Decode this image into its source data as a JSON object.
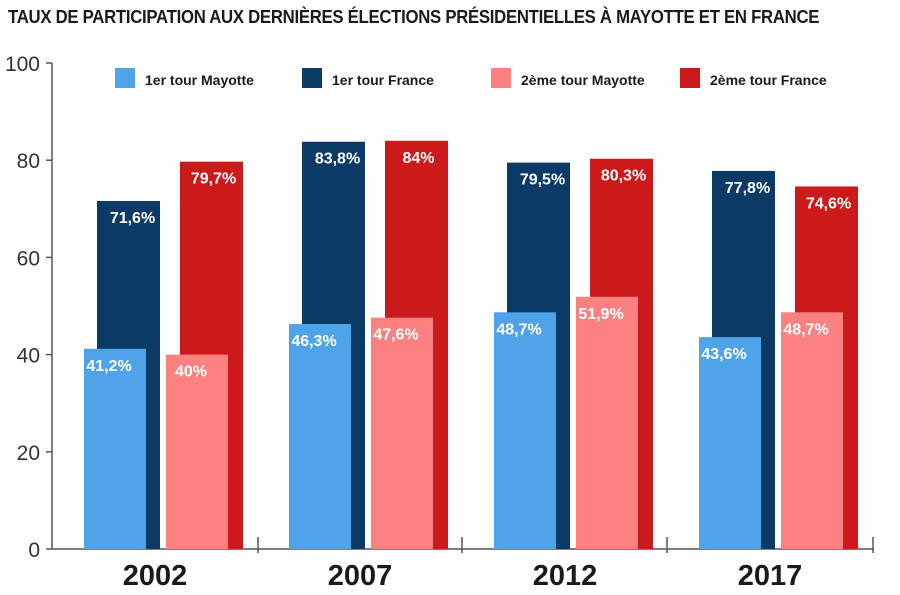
{
  "chart_data": {
    "type": "bar",
    "title": "TAUX DE PARTICIPATION AUX DERNIÈRES ÉLECTIONS PRÉSIDENTIELLES À MAYOTTE ET EN FRANCE",
    "categories": [
      "2002",
      "2007",
      "2012",
      "2017"
    ],
    "ylim": [
      0,
      100
    ],
    "yticks": [
      0,
      20,
      40,
      60,
      80,
      100
    ],
    "grid": false,
    "legend_position": "top",
    "series": [
      {
        "name": "1er tour Mayotte",
        "color": "#4FA3E8",
        "values": [
          41.2,
          46.3,
          48.7,
          43.6
        ],
        "labels": [
          "41,2%",
          "46,3%",
          "48,7%",
          "43,6%"
        ]
      },
      {
        "name": "1er tour France",
        "color": "#0B3A66",
        "values": [
          71.6,
          83.8,
          79.5,
          77.8
        ],
        "labels": [
          "71,6%",
          "83,8%",
          "79,5%",
          "77,8%"
        ]
      },
      {
        "name": "2ème tour Mayotte",
        "color": "#FB8181",
        "values": [
          40,
          47.6,
          51.9,
          48.7
        ],
        "labels": [
          "40%",
          "47,6%",
          "51,9%",
          "48,7%"
        ]
      },
      {
        "name": "2ème tour France",
        "color": "#CC1A1A",
        "values": [
          79.7,
          84,
          80.3,
          74.6
        ],
        "labels": [
          "79,7%",
          "84%",
          "80,3%",
          "74,6%"
        ]
      }
    ]
  }
}
